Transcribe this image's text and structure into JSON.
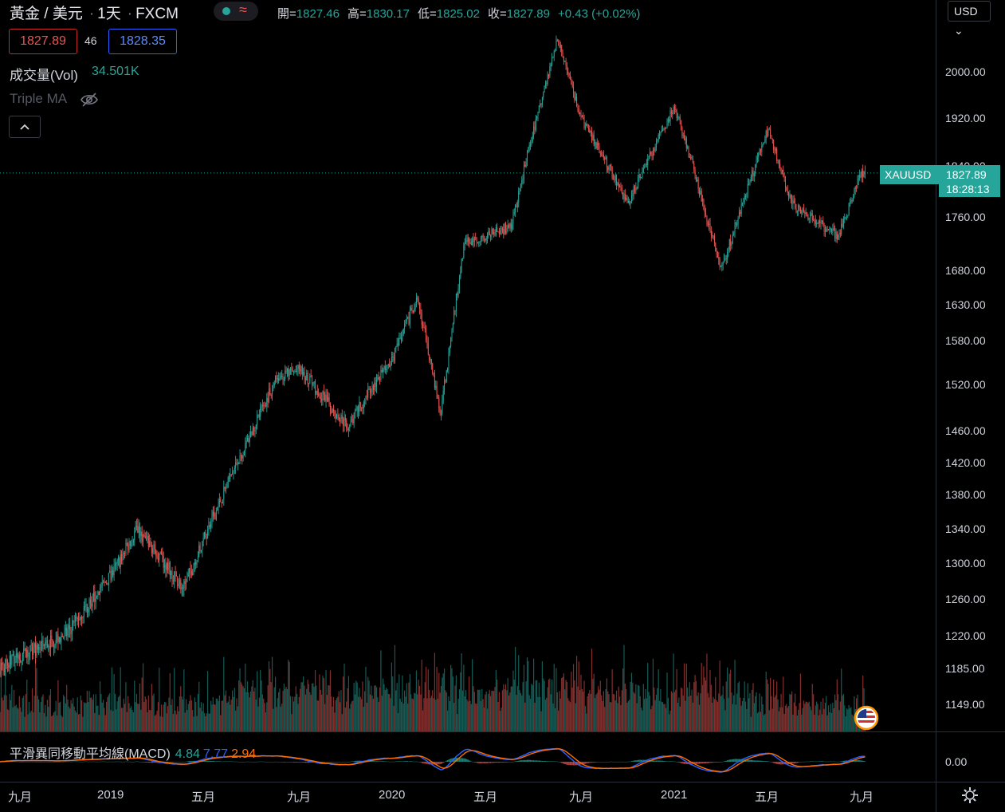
{
  "header": {
    "symbol": "黃金 / 美元",
    "interval": "1天",
    "exchange": "FXCM",
    "dot": "·",
    "ohlc": [
      {
        "label": "開=",
        "value": "1827.46"
      },
      {
        "label": "高=",
        "value": "1830.17"
      },
      {
        "label": "低=",
        "value": "1825.02"
      },
      {
        "label": "收=",
        "value": "1827.89"
      },
      {
        "label": "",
        "value": "+0.43 (+0.02%)"
      }
    ],
    "status_icon": "approx-wave-icon"
  },
  "quote": {
    "bid": "1827.89",
    "spread": "46",
    "ask": "1828.35"
  },
  "indicators": {
    "volume_label": "成交量(Vol)",
    "volume_value": "34.501K",
    "ma_label": "Triple MA",
    "ma_icon": "eye-hidden-icon"
  },
  "currency_button": "USD",
  "price_axis": [
    "2000.00",
    "1920.00",
    "1840.00",
    "1760.00",
    "1680.00",
    "1630.00",
    "1580.00",
    "1520.00",
    "1460.00",
    "1420.00",
    "1380.00",
    "1340.00",
    "1300.00",
    "1260.00",
    "1220.00",
    "1185.00",
    "1149.00"
  ],
  "last": {
    "symbol": "XAUUSD",
    "price": "1827.89",
    "countdown": "18:28:13"
  },
  "macd": {
    "label": "平滑異同移動平均線(MACD)",
    "value1": "4.84",
    "value2": "7.77",
    "value3": "2.94",
    "axis": "0.00"
  },
  "time_axis": [
    "九月",
    "2019",
    "五月",
    "九月",
    "2020",
    "五月",
    "九月",
    "2021",
    "五月",
    "九月"
  ],
  "colors": {
    "up": "#26a69a",
    "down": "#ef5350",
    "macd_line": "#2962ff",
    "signal_line": "#ff6d00"
  },
  "chart_data": {
    "type": "candlestick",
    "title": "黃金 / 美元 · 1天 · FXCM",
    "anchors_close": [
      {
        "t": "2018-08",
        "close": 1185
      },
      {
        "t": "2018-11",
        "close": 1222
      },
      {
        "t": "2019-01",
        "close": 1290
      },
      {
        "t": "2019-02",
        "close": 1340
      },
      {
        "t": "2019-04",
        "close": 1272
      },
      {
        "t": "2019-06",
        "close": 1400
      },
      {
        "t": "2019-08",
        "close": 1530
      },
      {
        "t": "2019-09",
        "close": 1540
      },
      {
        "t": "2019-11",
        "close": 1465
      },
      {
        "t": "2020-01",
        "close": 1560
      },
      {
        "t": "2020-02",
        "close": 1640
      },
      {
        "t": "2020-03",
        "close": 1480
      },
      {
        "t": "2020-04",
        "close": 1720
      },
      {
        "t": "2020-06",
        "close": 1745
      },
      {
        "t": "2020-08",
        "close": 2060
      },
      {
        "t": "2020-09",
        "close": 1920
      },
      {
        "t": "2020-11",
        "close": 1780
      },
      {
        "t": "2021-01",
        "close": 1940
      },
      {
        "t": "2021-03",
        "close": 1680
      },
      {
        "t": "2021-05",
        "close": 1900
      },
      {
        "t": "2021-06",
        "close": 1780
      },
      {
        "t": "2021-08",
        "close": 1730
      },
      {
        "t": "2021-09",
        "close": 1827.89
      }
    ],
    "ylim": [
      1120,
      2080
    ]
  }
}
